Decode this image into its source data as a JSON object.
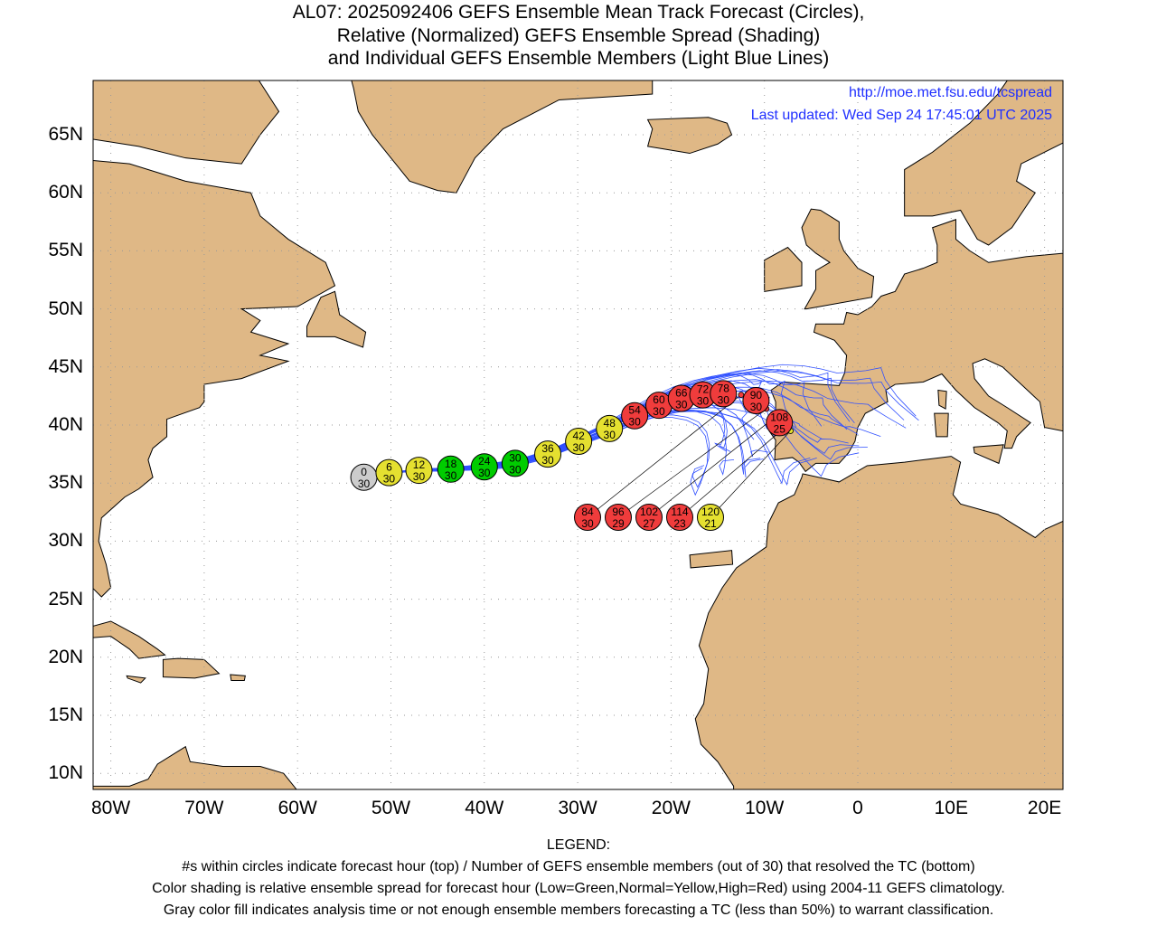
{
  "title": {
    "line1": "AL07: 2025092406 GEFS Ensemble Mean Track Forecast (Circles),",
    "line2": "Relative (Normalized) GEFS Ensemble Spread (Shading)",
    "line3": "and Individual GEFS Ensemble Members (Light Blue Lines)"
  },
  "credit": {
    "url": "http://moe.met.fsu.edu/tcspread",
    "updated": "Last updated: Wed Sep 24 17:45:01 UTC 2025"
  },
  "axes": {
    "lat_labels": [
      "65N",
      "60N",
      "55N",
      "50N",
      "45N",
      "40N",
      "35N",
      "30N",
      "25N",
      "20N",
      "15N",
      "10N"
    ],
    "lat_values": [
      65,
      60,
      55,
      50,
      45,
      40,
      35,
      30,
      25,
      20,
      15,
      10
    ],
    "lon_labels": [
      "80W",
      "70W",
      "60W",
      "50W",
      "40W",
      "30W",
      "20W",
      "10W",
      "0",
      "10E",
      "20E"
    ],
    "lon_values": [
      -80,
      -70,
      -60,
      -50,
      -40,
      -30,
      -20,
      -10,
      0,
      10,
      20
    ]
  },
  "colors": {
    "land": "#dfb886",
    "ocean": "#ffffff",
    "green": "#00cc00",
    "yellow": "#e5e030",
    "red": "#f03c3c",
    "gray": "#cccccc",
    "member": "#3050ff"
  },
  "track": [
    {
      "hour": "0",
      "members": "30",
      "lon": -52.9,
      "lat": 35.5,
      "spread": "gray"
    },
    {
      "hour": "6",
      "members": "30",
      "lon": -50.2,
      "lat": 35.9,
      "spread": "yellow"
    },
    {
      "hour": "12",
      "members": "30",
      "lon": -47.0,
      "lat": 36.1,
      "spread": "yellow"
    },
    {
      "hour": "18",
      "members": "30",
      "lon": -43.6,
      "lat": 36.2,
      "spread": "green"
    },
    {
      "hour": "24",
      "members": "30",
      "lon": -40.0,
      "lat": 36.4,
      "spread": "green"
    },
    {
      "hour": "30",
      "members": "30",
      "lon": -36.7,
      "lat": 36.7,
      "spread": "green"
    },
    {
      "hour": "36",
      "members": "30",
      "lon": -33.2,
      "lat": 37.5,
      "spread": "yellow"
    },
    {
      "hour": "42",
      "members": "30",
      "lon": -29.9,
      "lat": 38.6,
      "spread": "yellow"
    },
    {
      "hour": "48",
      "members": "30",
      "lon": -26.6,
      "lat": 39.7,
      "spread": "yellow"
    },
    {
      "hour": "54",
      "members": "30",
      "lon": -23.9,
      "lat": 40.8,
      "spread": "red"
    },
    {
      "hour": "60",
      "members": "30",
      "lon": -21.3,
      "lat": 41.7,
      "spread": "red"
    },
    {
      "hour": "66",
      "members": "30",
      "lon": -18.9,
      "lat": 42.3,
      "spread": "red"
    },
    {
      "hour": "72",
      "members": "30",
      "lon": -16.6,
      "lat": 42.6,
      "spread": "red"
    },
    {
      "hour": "78",
      "members": "30",
      "lon": -14.4,
      "lat": 42.7,
      "spread": "red"
    },
    {
      "hour": "84",
      "members": "30",
      "lon": -12.5,
      "lat": 42.6,
      "spread": "red"
    },
    {
      "hour": "90",
      "members": "30",
      "lon": -10.9,
      "lat": 42.1,
      "spread": "red"
    },
    {
      "hour": "96",
      "members": "29",
      "lon": -9.8,
      "lat": 41.4,
      "spread": "red"
    },
    {
      "hour": "102",
      "members": "27",
      "lon": -9.0,
      "lat": 40.6,
      "spread": "red"
    },
    {
      "hour": "108",
      "members": "25",
      "lon": -8.4,
      "lat": 40.2,
      "spread": "red"
    },
    {
      "hour": "114",
      "members": "23",
      "lon": -7.8,
      "lat": 39.8,
      "spread": "red"
    },
    {
      "hour": "120",
      "members": "21",
      "lon": -7.2,
      "lat": 39.5,
      "spread": "yellow"
    }
  ],
  "legend": {
    "heading": "LEGEND:",
    "line1": "#s within circles indicate forecast hour (top) / Number of GEFS ensemble members (out of 30) that resolved the TC (bottom)",
    "line2": "Color shading is relative ensemble spread for forecast hour (Low=Green,Normal=Yellow,High=Red) using 2004-11 GEFS climatology.",
    "line3": "Gray color fill indicates analysis time or not enough ensemble members forecasting a TC (less than 50%) to warrant classification."
  }
}
